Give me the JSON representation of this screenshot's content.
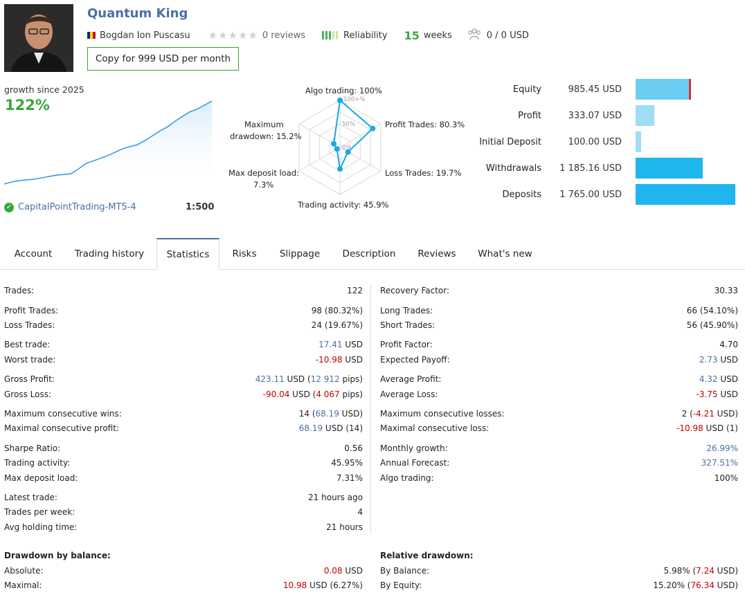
{
  "profile": {
    "title": "Quantum King",
    "author": "Bogdan Ion Puscasu",
    "reviews": "0 reviews",
    "reliability_label": "Reliability",
    "weeks_value": "15",
    "weeks_label": "weeks",
    "subscribers": "0 / 0 USD",
    "copy_button": "Copy for 999 USD per month"
  },
  "growth": {
    "label": "growth since 2025",
    "value": "122%",
    "server": "CapitalPointTrading-MT5-4",
    "leverage": "1:500"
  },
  "radar": {
    "algo": "Algo trading: 100%",
    "profit_trades": "Profit Trades: 80.3%",
    "loss_trades": "Loss Trades: 19.7%",
    "trading_activity": "Trading activity: 45.9%",
    "max_deposit_load_1": "Max deposit load:",
    "max_deposit_load_2": "7.3%",
    "max_drawdown_1": "Maximum",
    "max_drawdown_2": "drawdown: 15.2%",
    "scale_100": "100+%",
    "scale_50": "50%",
    "scale_0": "0%",
    "values": [
      100,
      80.3,
      19.7,
      45.9,
      7.3,
      15.2
    ]
  },
  "financials": [
    {
      "label": "Equity",
      "value": "985.45 USD",
      "amount": 985.45
    },
    {
      "label": "Profit",
      "value": "333.07 USD",
      "amount": 333.07
    },
    {
      "label": "Initial Deposit",
      "value": "100.00 USD",
      "amount": 100.0
    },
    {
      "label": "Withdrawals",
      "value": "1 185.16 USD",
      "amount": 1185.16
    },
    {
      "label": "Deposits",
      "value": "1 765.00 USD",
      "amount": 1765.0
    }
  ],
  "tabs": [
    "Account",
    "Trading history",
    "Statistics",
    "Risks",
    "Slippage",
    "Description",
    "Reviews",
    "What's new"
  ],
  "stats_left": {
    "trades_l": "Trades:",
    "trades_v": "122",
    "profit_trades_l": "Profit Trades:",
    "profit_trades_v": "98 (80.32%)",
    "loss_trades_l": "Loss Trades:",
    "loss_trades_v": "24 (19.67%)",
    "best_trade_l": "Best trade:",
    "best_trade_num": "17.41",
    "best_trade_unit": " USD",
    "worst_trade_l": "Worst trade:",
    "worst_trade_num": "-10.98",
    "worst_trade_unit": " USD",
    "gross_profit_l": "Gross Profit:",
    "gross_profit_num": "423.11",
    "gross_profit_mid": " USD (",
    "gross_profit_pips": "12 912",
    "gross_profit_end": " pips)",
    "gross_loss_l": "Gross Loss:",
    "gross_loss_num": "-90.04",
    "gross_loss_mid": " USD (",
    "gross_loss_pips": "4 067",
    "gross_loss_end": " pips)",
    "max_cons_wins_l": "Maximum consecutive wins:",
    "max_cons_wins_a": "14 (",
    "max_cons_wins_b": "68.19",
    "max_cons_wins_c": " USD)",
    "max_cons_profit_l": "Maximal consecutive profit:",
    "max_cons_profit_a": "68.19",
    "max_cons_profit_b": " USD (14)",
    "sharpe_l": "Sharpe Ratio:",
    "sharpe_v": "0.56",
    "activity_l": "Trading activity:",
    "activity_v": "45.95%",
    "deposit_load_l": "Max deposit load:",
    "deposit_load_v": "7.31%",
    "latest_l": "Latest trade:",
    "latest_v": "21 hours ago",
    "per_week_l": "Trades per week:",
    "per_week_v": "4",
    "holding_l": "Avg holding time:",
    "holding_v": "21 hours"
  },
  "stats_right": {
    "recovery_l": "Recovery Factor:",
    "recovery_v": "30.33",
    "long_l": "Long Trades:",
    "long_v": "66 (54.10%)",
    "short_l": "Short Trades:",
    "short_v": "56 (45.90%)",
    "pf_l": "Profit Factor:",
    "pf_v": "4.70",
    "exp_l": "Expected Payoff:",
    "exp_num": "2.73",
    "exp_unit": " USD",
    "avg_profit_l": "Average Profit:",
    "avg_profit_num": "4.32",
    "avg_profit_unit": " USD",
    "avg_loss_l": "Average Loss:",
    "avg_loss_num": "-3.75",
    "avg_loss_unit": " USD",
    "max_cons_losses_l": "Maximum consecutive losses:",
    "max_cons_losses_a": "2 (",
    "max_cons_losses_b": "-4.21",
    "max_cons_losses_c": " USD)",
    "max_cons_loss_l": "Maximal consecutive loss:",
    "max_cons_loss_a": "-10.98",
    "max_cons_loss_b": " USD (1)",
    "monthly_l": "Monthly growth:",
    "monthly_v": "26.99%",
    "annual_l": "Annual Forecast:",
    "annual_v": "327.51%",
    "algo_l": "Algo trading:",
    "algo_v": "100%"
  },
  "drawdown_balance": {
    "title": "Drawdown by balance:",
    "absolute_l": "Absolute:",
    "absolute_num": "0.08",
    "absolute_unit": " USD",
    "maximal_l": "Maximal:",
    "maximal_num": "10.98",
    "maximal_rest": " USD (6.27%)"
  },
  "relative_drawdown": {
    "title": "Relative drawdown:",
    "by_balance_l": "By Balance:",
    "by_balance_a": "5.98% (",
    "by_balance_b": "7.24",
    "by_balance_c": " USD)",
    "by_equity_l": "By Equity:",
    "by_equity_a": "15.20% (",
    "by_equity_b": "76.34",
    "by_equity_c": " USD)"
  },
  "colors": {
    "accent": "#4a6fa5",
    "green": "#3aa63a",
    "negative": "#c00000",
    "bar_light": "#9fdcf5",
    "bar_mid": "#6ccdf2",
    "bar_dark": "#1fb5ee",
    "radar_line": "#18a8e6"
  },
  "chart_data": {
    "type": "area",
    "title": "growth since 2025",
    "series": [
      {
        "values": [
          0,
          3,
          5,
          6,
          7,
          9,
          11,
          13,
          14,
          15,
          22,
          30,
          34,
          38,
          42,
          47,
          52,
          55,
          58,
          64,
          71,
          78,
          84,
          92,
          99,
          106,
          110,
          116,
          122
        ]
      }
    ]
  }
}
